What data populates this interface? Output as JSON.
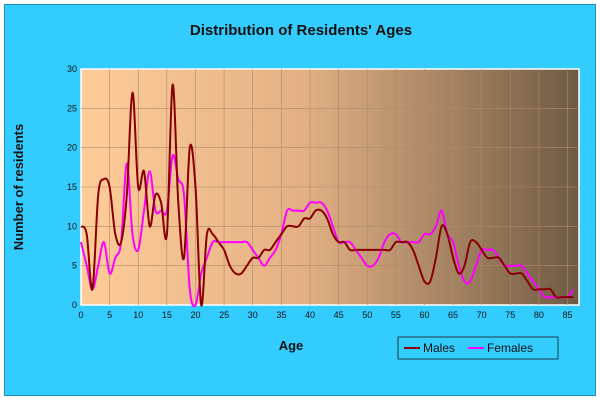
{
  "chart_data": {
    "type": "line",
    "title": "Distribution of Residents' Ages",
    "xlabel": "Age",
    "ylabel": "Number of residents",
    "xlim": [
      0,
      87
    ],
    "ylim": [
      0,
      30
    ],
    "x_ticks": [
      "0",
      "5",
      "10",
      "15",
      "20",
      "25",
      "30",
      "35",
      "40",
      "45",
      "50",
      "55",
      "60",
      "65",
      "70",
      "75",
      "80",
      "85"
    ],
    "y_ticks": [
      "0",
      "5",
      "10",
      "15",
      "20",
      "25",
      "30"
    ],
    "grid": true,
    "legend_position": "bottom-right",
    "colors": {
      "frame_bg": "#33ccff",
      "plot_gradient_left": "#ffcc99",
      "plot_gradient_right": "#6e5a44",
      "gridline": "#b08a66",
      "males": "#880000",
      "females": "#ff00ff"
    },
    "series": [
      {
        "name": "Males",
        "x": [
          0,
          1,
          2,
          3,
          4,
          5,
          6,
          7,
          8,
          9,
          10,
          11,
          12,
          13,
          14,
          15,
          16,
          17,
          18,
          19,
          20,
          21,
          22,
          23,
          24,
          25,
          26,
          27,
          28,
          29,
          30,
          31,
          32,
          33,
          34,
          35,
          36,
          37,
          38,
          39,
          40,
          41,
          42,
          43,
          44,
          45,
          46,
          47,
          48,
          49,
          50,
          51,
          52,
          53,
          54,
          55,
          56,
          57,
          58,
          59,
          60,
          61,
          62,
          63,
          64,
          65,
          66,
          67,
          68,
          69,
          70,
          71,
          72,
          73,
          74,
          75,
          76,
          77,
          78,
          79,
          80,
          81,
          82,
          83,
          84,
          85,
          86
        ],
        "values": [
          10,
          9,
          2,
          14,
          16,
          15,
          9,
          8,
          14,
          27,
          15,
          17,
          10,
          14,
          13,
          9,
          28,
          13,
          6,
          20,
          15,
          0,
          9,
          9,
          8,
          7,
          5,
          4,
          4,
          5,
          6,
          6,
          7,
          7,
          8,
          9,
          10,
          10,
          10,
          11,
          11,
          12,
          12,
          11,
          9,
          8,
          8,
          7,
          7,
          7,
          7,
          7,
          7,
          7,
          7,
          8,
          8,
          8,
          7,
          5,
          3,
          3,
          6,
          10,
          9,
          6,
          4,
          5,
          8,
          8,
          7,
          6,
          6,
          6,
          5,
          4,
          4,
          4,
          3,
          2,
          2,
          2,
          2,
          1,
          1,
          1,
          1
        ]
      },
      {
        "name": "Females",
        "x": [
          0,
          1,
          2,
          3,
          4,
          5,
          6,
          7,
          8,
          9,
          10,
          11,
          12,
          13,
          14,
          15,
          16,
          17,
          18,
          19,
          20,
          21,
          22,
          23,
          24,
          25,
          26,
          27,
          28,
          29,
          30,
          31,
          32,
          33,
          34,
          35,
          36,
          37,
          38,
          39,
          40,
          41,
          42,
          43,
          44,
          45,
          46,
          47,
          48,
          49,
          50,
          51,
          52,
          53,
          54,
          55,
          56,
          57,
          58,
          59,
          60,
          61,
          62,
          63,
          64,
          65,
          66,
          67,
          68,
          69,
          70,
          71,
          72,
          73,
          74,
          75,
          76,
          77,
          78,
          79,
          80,
          81,
          82,
          83,
          84,
          85,
          86
        ],
        "values": [
          8,
          5,
          2,
          5,
          8,
          4,
          6,
          8,
          18,
          9,
          7,
          12,
          17,
          12,
          12,
          12,
          19,
          16,
          14,
          2,
          0,
          4,
          6,
          8,
          8,
          8,
          8,
          8,
          8,
          8,
          7,
          6,
          5,
          6,
          7,
          9,
          12,
          12,
          12,
          12,
          13,
          13,
          13,
          12,
          10,
          8,
          8,
          8,
          7,
          6,
          5,
          5,
          6,
          8,
          9,
          9,
          8,
          8,
          8,
          8,
          9,
          9,
          10,
          12,
          9,
          8,
          5,
          3,
          3,
          5,
          7,
          7,
          7,
          6,
          5,
          5,
          5,
          5,
          4,
          3,
          2,
          1,
          1,
          1,
          1,
          1,
          2
        ]
      }
    ]
  }
}
